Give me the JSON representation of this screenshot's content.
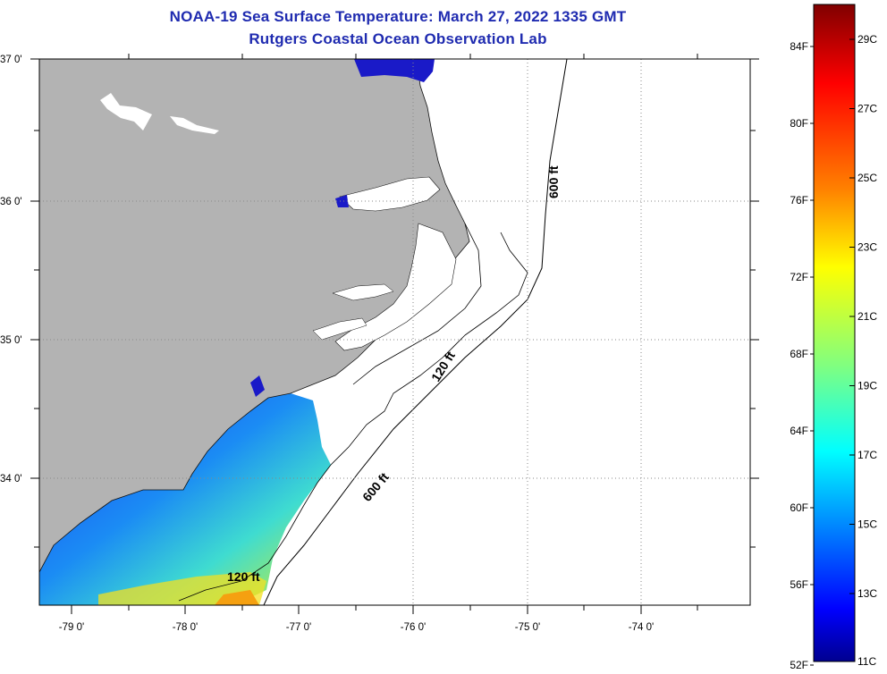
{
  "title": {
    "line1": "NOAA-19 Sea Surface Temperature:  March 27, 2022 1335 GMT",
    "line2": "Rutgers Coastal Ocean Observation Lab"
  },
  "map": {
    "lat_labels": [
      "37 0'",
      "36 0'",
      "35 0'",
      "34 0'"
    ],
    "lon_labels": [
      "-79 0'",
      "-78 0'",
      "-77 0'",
      "-76 0'",
      "-75 0'",
      "-74 0'"
    ],
    "contour_labels": {
      "c600_north": "600 ft",
      "c120_mid": "120 ft",
      "c600_south": "600 ft",
      "c120_south": "120 ft"
    },
    "colors": {
      "land": "#b3b3b3",
      "ocean_nodata": "#ffffff"
    }
  },
  "colorbar": {
    "fahrenheit": [
      "84F",
      "80F",
      "76F",
      "72F",
      "68F",
      "64F",
      "60F",
      "56F",
      "52F"
    ],
    "celsius": [
      "29C",
      "27C",
      "25C",
      "23C",
      "21C",
      "19C",
      "17C",
      "15C",
      "13C",
      "11C"
    ],
    "stops": [
      "#800000",
      "#ff0000",
      "#ff8000",
      "#ffff00",
      "#80ff80",
      "#00ffff",
      "#0080ff",
      "#0000ff",
      "#00008f"
    ]
  }
}
